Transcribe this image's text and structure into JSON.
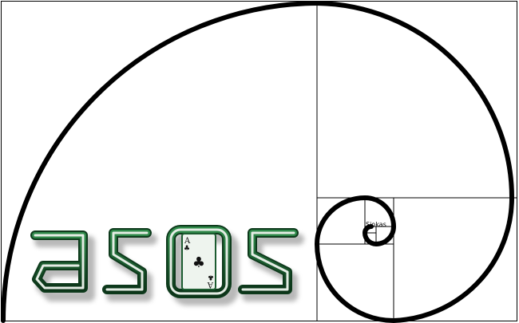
{
  "logo": {
    "text": "asos",
    "card_rank": "A",
    "card_suit": "♣",
    "colors": {
      "letter_outer": "#0e3a1c",
      "letter_mid": "#1f6a36",
      "letter_fill": "#e4ece4",
      "shadow": "#8a8a8a",
      "card_fill": "#eef4ee",
      "card_border": "#1c5c30"
    }
  },
  "spiral": {
    "label": "Siokas",
    "stroke_color": "#000000",
    "grid_color": "#000000"
  }
}
